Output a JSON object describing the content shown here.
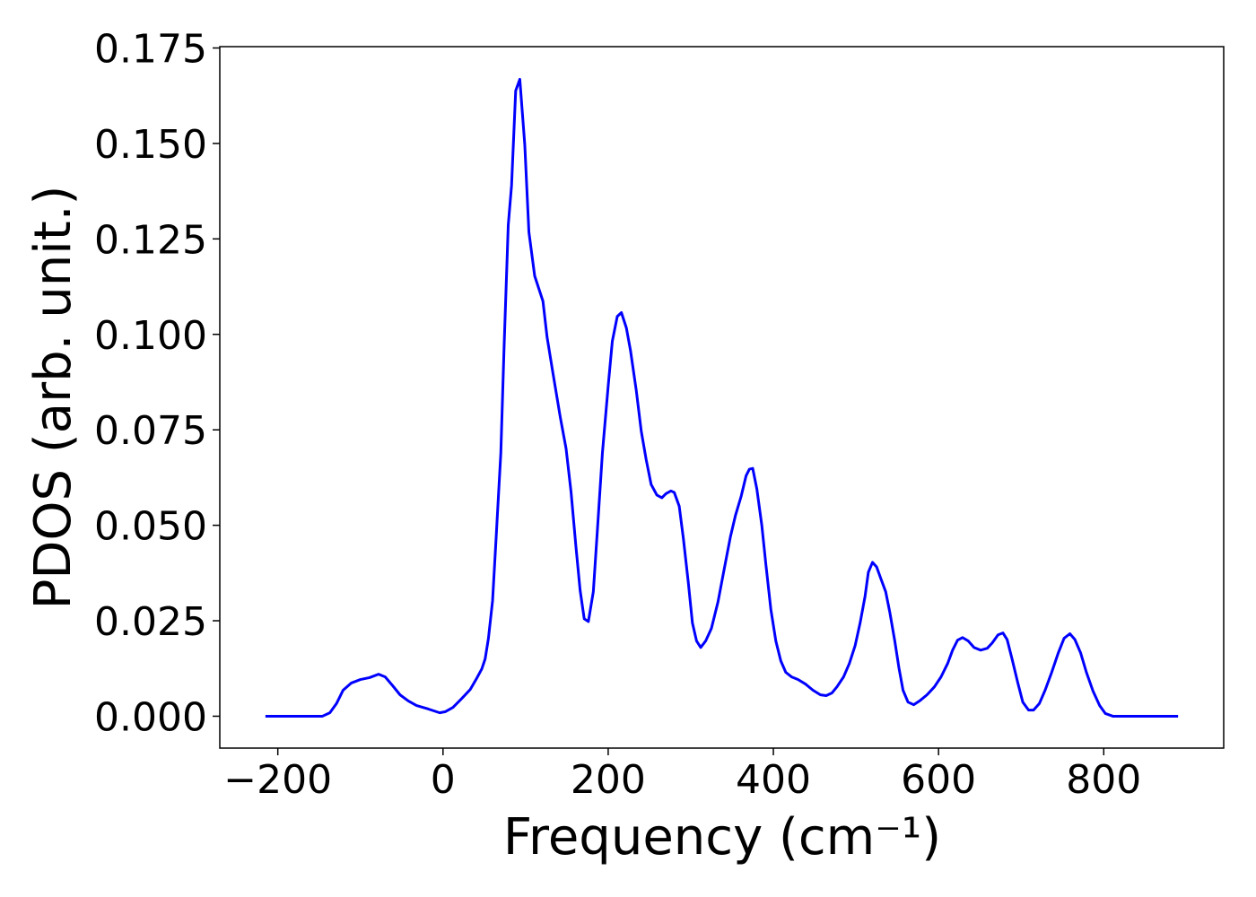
{
  "chart_data": {
    "type": "line",
    "xlabel": "Frequency (cm⁻¹)",
    "ylabel": "PDOS (arb. unit.)",
    "color": "#0000ff",
    "x": [
      -215,
      -146,
      -137,
      -129,
      -121,
      -111,
      -100,
      -89,
      -78,
      -70,
      -61,
      -52,
      -42,
      -32,
      -18,
      -4,
      3,
      12,
      23,
      33,
      41,
      47,
      51,
      55,
      60,
      64,
      70,
      74,
      79,
      83,
      88,
      93,
      99,
      104,
      111,
      121,
      126,
      133,
      142,
      149,
      155,
      161,
      166,
      171,
      176,
      182,
      187,
      193,
      200,
      205,
      211,
      216,
      222,
      227,
      234,
      240,
      246,
      252,
      259,
      265,
      270,
      276,
      280,
      286,
      291,
      297,
      302,
      307,
      312,
      318,
      325,
      333,
      340,
      348,
      354,
      361,
      367,
      371,
      375,
      380,
      386,
      391,
      397,
      403,
      409,
      415,
      422,
      430,
      439,
      448,
      457,
      464,
      471,
      477,
      485,
      492,
      499,
      505,
      511,
      515,
      520,
      525,
      530,
      536,
      541,
      547,
      552,
      557,
      563,
      570,
      577,
      586,
      595,
      603,
      611,
      617,
      623,
      629,
      636,
      643,
      651,
      659,
      665,
      672,
      678,
      683,
      689,
      696,
      702,
      709,
      715,
      722,
      729,
      737,
      745,
      752,
      759,
      765,
      772,
      779,
      787,
      795,
      802,
      811,
      890
    ],
    "values": [
      0,
      0,
      0.0009,
      0.0033,
      0.0068,
      0.0087,
      0.0096,
      0.0101,
      0.011,
      0.0103,
      0.008,
      0.0056,
      0.004,
      0.0028,
      0.0019,
      0.0009,
      0.0012,
      0.0023,
      0.0047,
      0.007,
      0.01,
      0.0124,
      0.015,
      0.0204,
      0.0302,
      0.0455,
      0.0689,
      0.097,
      0.1286,
      0.139,
      0.1638,
      0.1668,
      0.1497,
      0.1268,
      0.1153,
      0.1087,
      0.0993,
      0.09,
      0.0783,
      0.0701,
      0.0588,
      0.0443,
      0.033,
      0.0255,
      0.0248,
      0.0326,
      0.049,
      0.0689,
      0.0865,
      0.0982,
      0.1047,
      0.1057,
      0.1017,
      0.0958,
      0.0853,
      0.0747,
      0.0672,
      0.0607,
      0.0579,
      0.0572,
      0.0583,
      0.059,
      0.0586,
      0.055,
      0.0466,
      0.035,
      0.0244,
      0.0197,
      0.018,
      0.0197,
      0.023,
      0.03,
      0.038,
      0.047,
      0.0525,
      0.0576,
      0.063,
      0.0647,
      0.0649,
      0.0595,
      0.05,
      0.0396,
      0.0279,
      0.0197,
      0.0145,
      0.0115,
      0.0103,
      0.0096,
      0.0084,
      0.0068,
      0.0056,
      0.0054,
      0.0061,
      0.0077,
      0.0103,
      0.0138,
      0.0185,
      0.0244,
      0.0314,
      0.0377,
      0.0403,
      0.0391,
      0.0361,
      0.0326,
      0.0272,
      0.0197,
      0.0127,
      0.0068,
      0.0037,
      0.003,
      0.004,
      0.0056,
      0.0077,
      0.0103,
      0.0138,
      0.0173,
      0.0199,
      0.0206,
      0.0197,
      0.018,
      0.0173,
      0.0178,
      0.0192,
      0.0213,
      0.0218,
      0.0201,
      0.015,
      0.0087,
      0.0037,
      0.0016,
      0.0016,
      0.0033,
      0.0068,
      0.0115,
      0.0166,
      0.0204,
      0.0216,
      0.0201,
      0.0166,
      0.0115,
      0.0066,
      0.0028,
      0.0007,
      0,
      0
    ],
    "xlim": [
      -270.25,
      945.25
    ],
    "ylim": [
      -0.00835,
      0.17535
    ],
    "xticks": [
      {
        "value": -200,
        "label": "−200"
      },
      0,
      200,
      400,
      600,
      800
    ],
    "yticks": [
      {
        "value": 0,
        "label": "0.000"
      },
      {
        "value": 0.025,
        "label": "0.025"
      },
      {
        "value": 0.05,
        "label": "0.050"
      },
      {
        "value": 0.075,
        "label": "0.075"
      },
      {
        "value": 0.1,
        "label": "0.100"
      },
      {
        "value": 0.125,
        "label": "0.125"
      },
      {
        "value": 0.15,
        "label": "0.150"
      },
      {
        "value": 0.175,
        "label": "0.175"
      }
    ]
  }
}
